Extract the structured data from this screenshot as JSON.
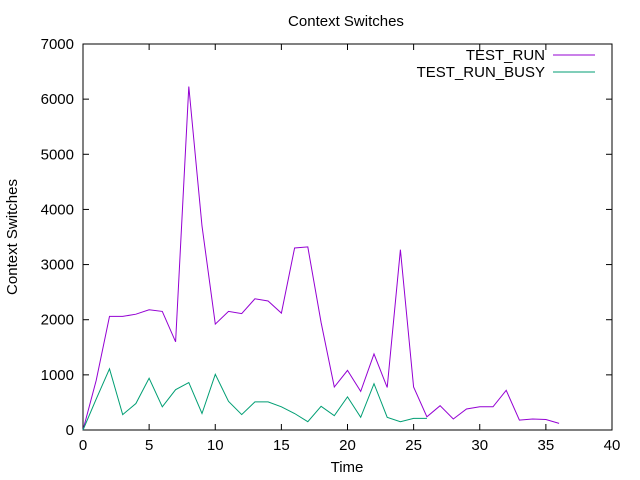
{
  "chart_data": {
    "type": "line",
    "title": "Context Switches",
    "xlabel": "Time",
    "ylabel": "Context Switches",
    "xlim": [
      0,
      40
    ],
    "ylim": [
      0,
      7000
    ],
    "xticks": [
      0,
      5,
      10,
      15,
      20,
      25,
      30,
      35,
      40
    ],
    "yticks": [
      0,
      1000,
      2000,
      3000,
      4000,
      5000,
      6000,
      7000
    ],
    "grid": false,
    "legend_position": "top-right",
    "series": [
      {
        "name": "TEST_RUN",
        "color": "#9400d3",
        "x": [
          0,
          1,
          2,
          3,
          4,
          5,
          6,
          7,
          8,
          9,
          10,
          11,
          12,
          13,
          14,
          15,
          16,
          17,
          18,
          19,
          20,
          21,
          22,
          23,
          24,
          25,
          26,
          27,
          28,
          29,
          30,
          31,
          32,
          33,
          34,
          35,
          36
        ],
        "y": [
          0,
          900,
          2060,
          2060,
          2100,
          2180,
          2150,
          1600,
          6230,
          3700,
          1920,
          2150,
          2110,
          2380,
          2340,
          2120,
          3300,
          3320,
          1950,
          780,
          1080,
          700,
          1380,
          770,
          3270,
          780,
          240,
          440,
          200,
          380,
          420,
          420,
          720,
          180,
          200,
          190,
          120
        ]
      },
      {
        "name": "TEST_RUN_BUSY",
        "color": "#009e73",
        "x": [
          0,
          1,
          2,
          3,
          4,
          5,
          6,
          7,
          8,
          9,
          10,
          11,
          12,
          13,
          14,
          15,
          16,
          17,
          18,
          19,
          20,
          21,
          22,
          23,
          24,
          25,
          26
        ],
        "y": [
          0,
          560,
          1110,
          280,
          480,
          940,
          420,
          730,
          860,
          300,
          1010,
          520,
          280,
          510,
          510,
          420,
          300,
          150,
          430,
          260,
          600,
          230,
          840,
          230,
          150,
          210,
          210
        ]
      }
    ]
  }
}
